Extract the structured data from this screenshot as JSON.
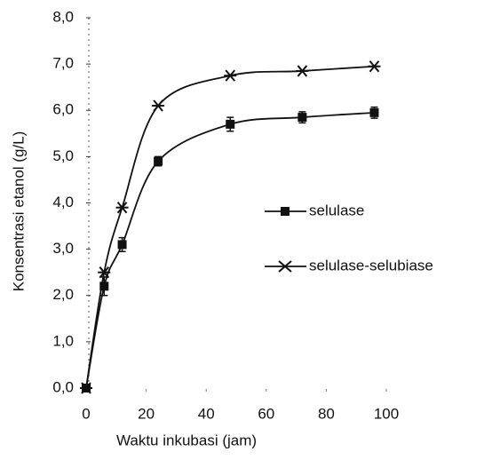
{
  "chart_data": {
    "type": "line",
    "x_label": "Waktu inkubasi (jam)",
    "y_label": "Konsentrasi etanol (g/L)",
    "x": [
      0,
      6,
      12,
      24,
      48,
      72,
      96
    ],
    "series": [
      {
        "name": "selulase",
        "color": "#111111",
        "marker": "square",
        "values": [
          0,
          2.2,
          3.1,
          4.9,
          5.7,
          5.85,
          5.95
        ],
        "errors": [
          0.05,
          0.2,
          0.15,
          0.1,
          0.15,
          0.12,
          0.12
        ]
      },
      {
        "name": "selulase-selubiase",
        "color": "#111111",
        "marker": "star",
        "values": [
          0,
          2.5,
          3.9,
          6.1,
          6.75,
          6.85,
          6.95
        ]
      }
    ],
    "xlim": [
      0,
      100
    ],
    "xticks": [
      0,
      20,
      40,
      60,
      80,
      100
    ],
    "ylim": [
      0,
      8
    ],
    "yticks": [
      {
        "value": 0,
        "label": "0,0"
      },
      {
        "value": 1,
        "label": "1,0"
      },
      {
        "value": 2,
        "label": "2,0"
      },
      {
        "value": 3,
        "label": "3,0"
      },
      {
        "value": 4,
        "label": "4,0"
      },
      {
        "value": 5,
        "label": "5,0"
      },
      {
        "value": 6,
        "label": "6,0"
      },
      {
        "value": 7,
        "label": "7,0"
      },
      {
        "value": 8,
        "label": "8,0"
      }
    ],
    "legend": "right"
  }
}
